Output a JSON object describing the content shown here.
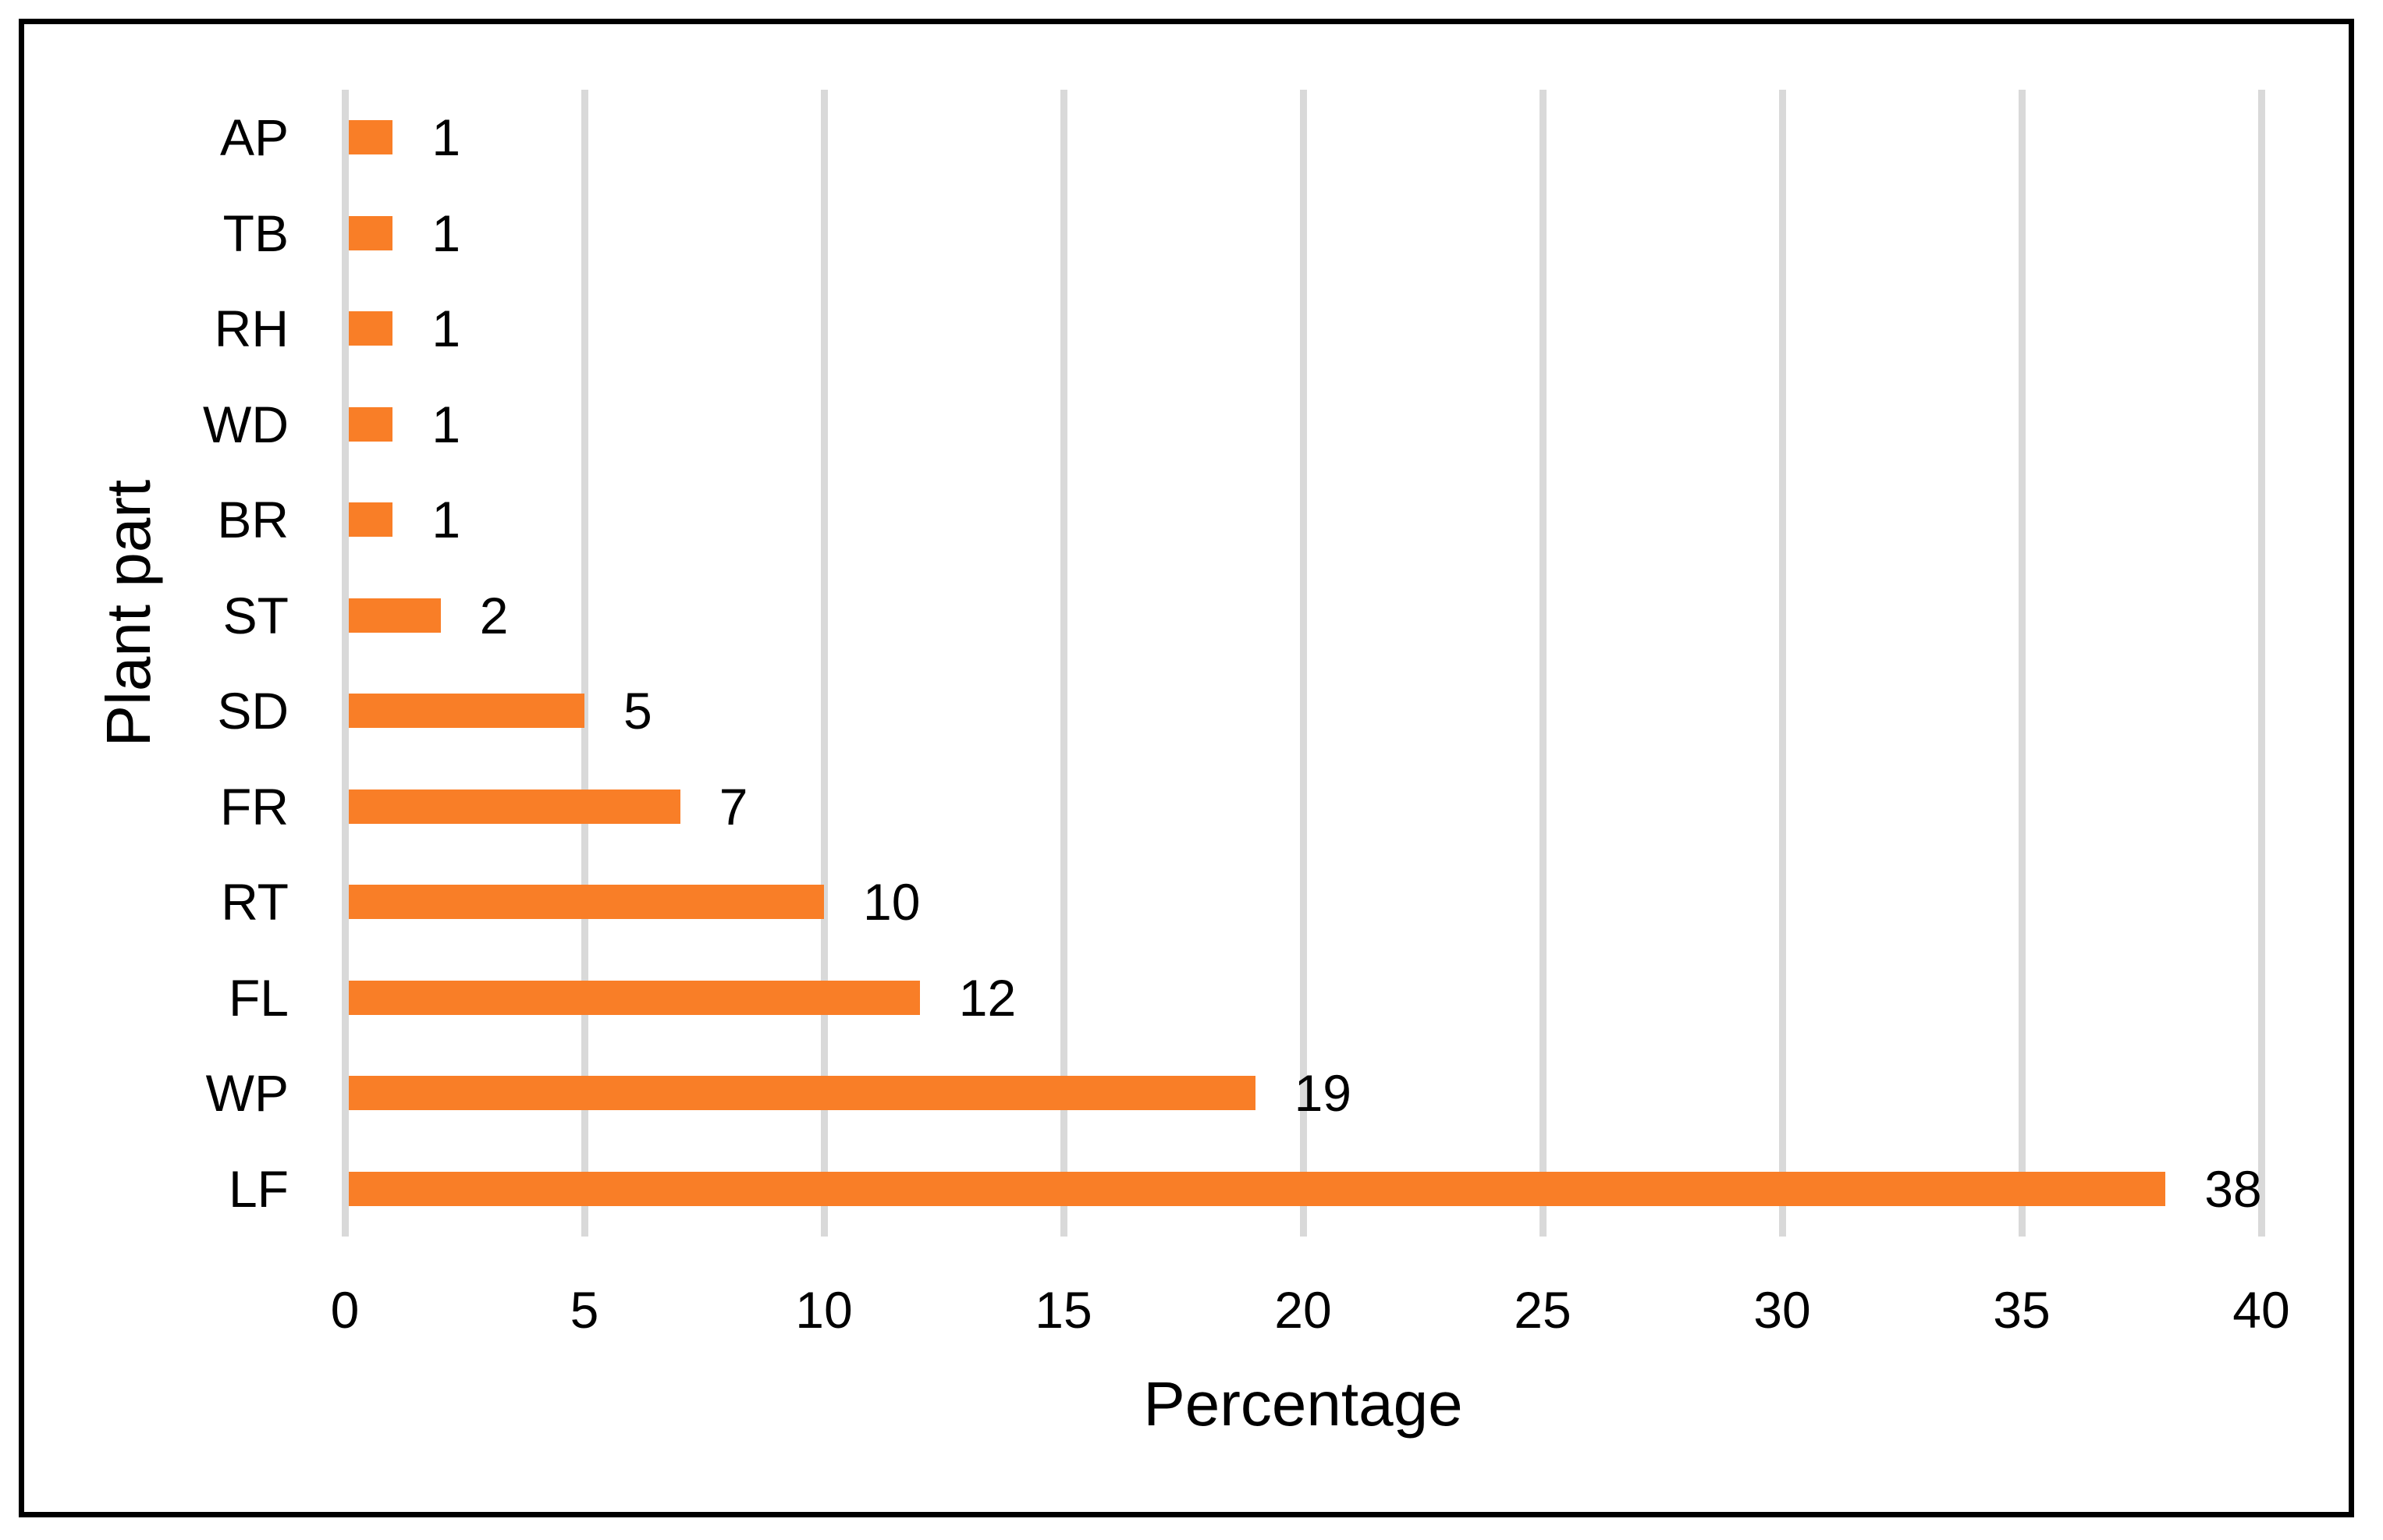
{
  "chart_data": {
    "type": "bar",
    "orientation": "horizontal",
    "title": "",
    "xlabel": "Percentage",
    "ylabel": "Plant part",
    "categories": [
      "AP",
      "TB",
      "RH",
      "WD",
      "BR",
      "ST",
      "SD",
      "FR",
      "RT",
      "FL",
      "WP",
      "LF"
    ],
    "values": [
      1,
      1,
      1,
      1,
      1,
      2,
      5,
      7,
      10,
      12,
      19,
      38
    ],
    "data_labels_shown": true,
    "xlim": [
      0,
      40
    ],
    "xticks": [
      0,
      5,
      10,
      15,
      20,
      25,
      30,
      35,
      40
    ],
    "grid": "vertical gridlines on",
    "legend": "none",
    "colors": {
      "bar": "#F97E27",
      "gridline": "#D9D9D9",
      "text": "#000000",
      "frame_border": "#000000",
      "background": "#FFFFFF"
    }
  }
}
